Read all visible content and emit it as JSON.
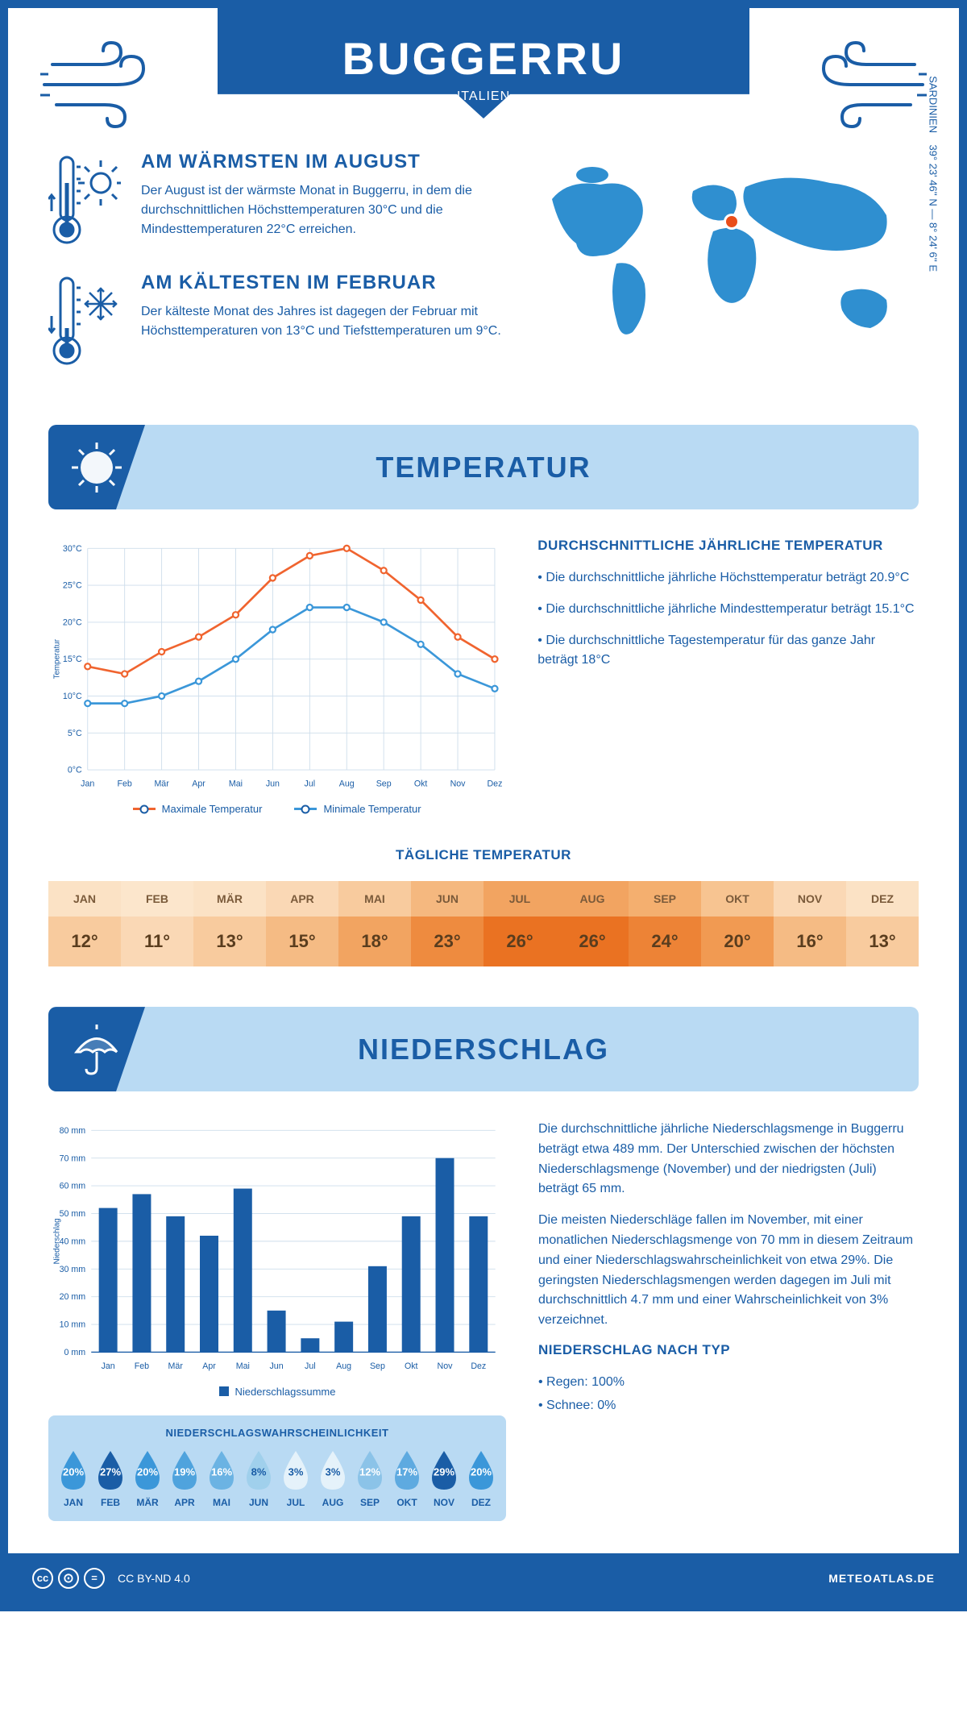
{
  "header": {
    "title": "BUGGERRU",
    "subtitle": "ITALIEN"
  },
  "coords": "39° 23' 46'' N — 8° 24' 6'' E",
  "region": "SARDINIEN",
  "intro": {
    "warm": {
      "title": "AM WÄRMSTEN IM AUGUST",
      "text": "Der August ist der wärmste Monat in Buggerru, in dem die durchschnittlichen Höchsttemperaturen 30°C und die Mindesttemperaturen 22°C erreichen."
    },
    "cold": {
      "title": "AM KÄLTESTEN IM FEBRUAR",
      "text": "Der kälteste Monat des Jahres ist dagegen der Februar mit Höchsttemperaturen von 13°C und Tiefsttemperaturen um 9°C."
    }
  },
  "sections": {
    "temp": "TEMPERATUR",
    "precip": "NIEDERSCHLAG"
  },
  "colors": {
    "primary": "#1a5da6",
    "lightblue": "#b9daf3",
    "max": "#f0642f",
    "min": "#3b97d9",
    "grid": "#cdddeb",
    "white": "#ffffff",
    "marker": "#e94e1b"
  },
  "temp_chart": {
    "months": [
      "Jan",
      "Feb",
      "Mär",
      "Apr",
      "Mai",
      "Jun",
      "Jul",
      "Aug",
      "Sep",
      "Okt",
      "Nov",
      "Dez"
    ],
    "max": [
      14,
      13,
      16,
      18,
      21,
      26,
      29,
      30,
      27,
      23,
      18,
      15
    ],
    "min": [
      9,
      9,
      10,
      12,
      15,
      19,
      22,
      22,
      20,
      17,
      13,
      11
    ],
    "ylabel": "Temperatur",
    "ylim": [
      0,
      30
    ],
    "ystep": 5,
    "legend_max": "Maximale Temperatur",
    "legend_min": "Minimale Temperatur"
  },
  "temp_text": {
    "heading": "DURCHSCHNITTLICHE JÄHRLICHE TEMPERATUR",
    "b1": "• Die durchschnittliche jährliche Höchsttemperatur beträgt 20.9°C",
    "b2": "• Die durchschnittliche jährliche Mindesttemperatur beträgt 15.1°C",
    "b3": "• Die durchschnittliche Tagestemperatur für das ganze Jahr beträgt 18°C"
  },
  "daily": {
    "heading": "TÄGLICHE TEMPERATUR",
    "months": [
      "JAN",
      "FEB",
      "MÄR",
      "APR",
      "MAI",
      "JUN",
      "JUL",
      "AUG",
      "SEP",
      "OKT",
      "NOV",
      "DEZ"
    ],
    "values": [
      "12°",
      "11°",
      "13°",
      "15°",
      "18°",
      "23°",
      "26°",
      "26°",
      "24°",
      "20°",
      "16°",
      "13°"
    ],
    "header_colors": [
      "#fbe2c5",
      "#fce6cc",
      "#fbe2c5",
      "#fad8b5",
      "#f8cb9e",
      "#f5b87f",
      "#f2a461",
      "#f2a461",
      "#f4af6f",
      "#f7c491",
      "#fad8b5",
      "#fbe2c5"
    ],
    "value_colors": [
      "#f8cb9e",
      "#fad8b5",
      "#f8cb9e",
      "#f5bb84",
      "#f2a461",
      "#ee8b3f",
      "#ea7222",
      "#ea7222",
      "#ed8336",
      "#f19a52",
      "#f5bb84",
      "#f8cb9e"
    ]
  },
  "precip_chart": {
    "months": [
      "Jan",
      "Feb",
      "Mär",
      "Apr",
      "Mai",
      "Jun",
      "Jul",
      "Aug",
      "Sep",
      "Okt",
      "Nov",
      "Dez"
    ],
    "values": [
      52,
      57,
      49,
      42,
      59,
      15,
      5,
      11,
      31,
      49,
      70,
      49
    ],
    "ylabel": "Niederschlag",
    "ylim": [
      0,
      80
    ],
    "ystep": 10,
    "legend": "Niederschlagssumme"
  },
  "precip_text": {
    "p1": "Die durchschnittliche jährliche Niederschlagsmenge in Buggerru beträgt etwa 489 mm. Der Unterschied zwischen der höchsten Niederschlagsmenge (November) und der niedrigsten (Juli) beträgt 65 mm.",
    "p2": "Die meisten Niederschläge fallen im November, mit einer monatlichen Niederschlagsmenge von 70 mm in diesem Zeitraum und einer Niederschlagswahrscheinlichkeit von etwa 29%. Die geringsten Niederschlagsmengen werden dagegen im Juli mit durchschnittlich 4.7 mm und einer Wahrscheinlichkeit von 3% verzeichnet.",
    "type_h": "NIEDERSCHLAG NACH TYP",
    "type1": "• Regen: 100%",
    "type2": "• Schnee: 0%"
  },
  "precip_prob": {
    "heading": "NIEDERSCHLAGSWAHRSCHEINLICHKEIT",
    "months": [
      "JAN",
      "FEB",
      "MÄR",
      "APR",
      "MAI",
      "JUN",
      "JUL",
      "AUG",
      "SEP",
      "OKT",
      "NOV",
      "DEZ"
    ],
    "pct": [
      "20%",
      "27%",
      "20%",
      "19%",
      "16%",
      "8%",
      "3%",
      "3%",
      "12%",
      "17%",
      "29%",
      "20%"
    ],
    "fill": [
      "#3b97d9",
      "#1a5da6",
      "#3b97d9",
      "#4fa3dd",
      "#6bb3e3",
      "#a0d0ec",
      "#e5f2fa",
      "#e5f2fa",
      "#8bc3e8",
      "#5eaae0",
      "#1a5da6",
      "#3b97d9"
    ],
    "text": [
      "#fff",
      "#fff",
      "#fff",
      "#fff",
      "#fff",
      "#1a5da6",
      "#1a5da6",
      "#1a5da6",
      "#fff",
      "#fff",
      "#fff",
      "#fff"
    ]
  },
  "footer": {
    "license": "CC BY-ND 4.0",
    "site": "METEOATLAS.DE"
  }
}
